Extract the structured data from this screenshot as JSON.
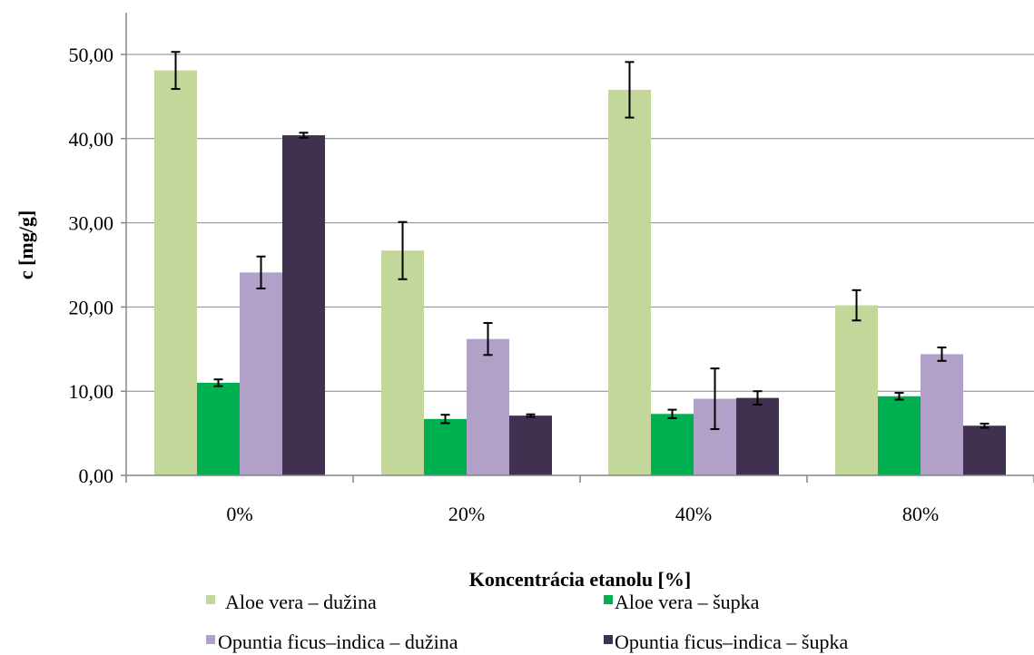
{
  "chart_data": {
    "type": "bar",
    "xlabel": "Koncentrácia etanolu [%]",
    "ylabel": "c [mg/g]",
    "categories": [
      "0%",
      "20%",
      "40%",
      "80%"
    ],
    "ylim": [
      0,
      55
    ],
    "yticks": [
      0,
      10,
      20,
      30,
      40,
      50
    ],
    "ytick_labels": [
      "0,00",
      "10,00",
      "20,00",
      "30,00",
      "40,00",
      "50,00"
    ],
    "grid": true,
    "legend_position": "bottom",
    "series": [
      {
        "name": "Aloe vera – dužina",
        "color": "#c4d79b",
        "values": [
          48.1,
          26.7,
          45.8,
          20.2
        ],
        "errors": [
          2.2,
          3.4,
          3.3,
          1.8
        ]
      },
      {
        "name": "Aloe vera – šupka",
        "color": "#00b050",
        "values": [
          11.0,
          6.7,
          7.3,
          9.4
        ],
        "errors": [
          0.4,
          0.5,
          0.5,
          0.4
        ]
      },
      {
        "name": "Opuntia ficus–indica – dužina",
        "color": "#b1a0c7",
        "values": [
          24.1,
          16.2,
          9.1,
          14.4
        ],
        "errors": [
          1.9,
          1.9,
          3.6,
          0.8
        ]
      },
      {
        "name": "Opuntia ficus–indica – šupka",
        "color": "#403151",
        "values": [
          40.4,
          7.1,
          9.2,
          5.9
        ],
        "errors": [
          0.3,
          0.15,
          0.8,
          0.25
        ]
      }
    ]
  }
}
